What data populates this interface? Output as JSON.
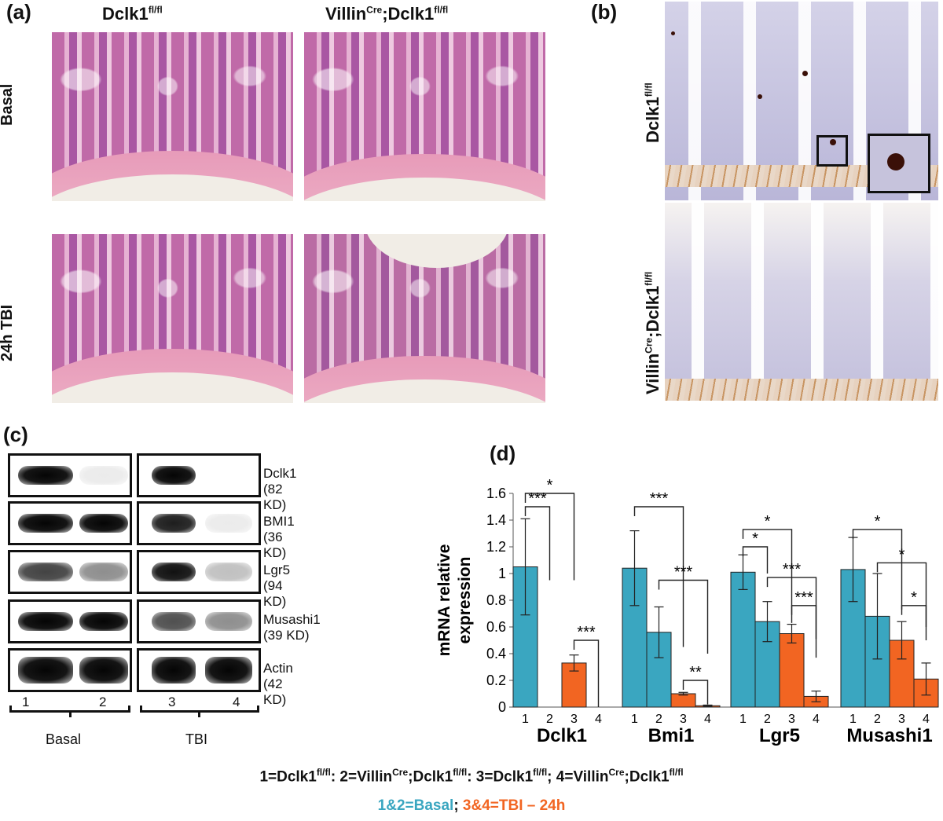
{
  "panels": {
    "a": "(a)",
    "b": "(b)",
    "c": "(c)",
    "d": "(d)"
  },
  "panel_a": {
    "col1_main": "Dclk1",
    "col1_sup": "fl/fl",
    "col2_main1": "Villin",
    "col2_sup1": "Cre",
    "col2_main2": ";Dclk1",
    "col2_sup2": "fl/fl",
    "row1": "Basal",
    "row2": "24h TBI"
  },
  "panel_b": {
    "row1_main": "Dclk1",
    "row1_sup": "fl/fl",
    "row2_main1": "Villin",
    "row2_sup1": "Cre",
    "row2_main2": ";Dclk1",
    "row2_sup2": "fl/fl"
  },
  "panel_c": {
    "proteins": [
      "Dclk1 (82 KD)",
      "BMI1 (36 KD)",
      "Lgr5 (94 KD)",
      "Musashi1 (39 KD)",
      "Actin (42 KD)"
    ],
    "lanes": [
      "1",
      "2",
      "3",
      "4"
    ],
    "groups": [
      "Basal",
      "TBI"
    ]
  },
  "chart_data": {
    "type": "bar",
    "ylabel": "mRNA relative expression",
    "ylim": [
      0,
      1.6
    ],
    "yticks": [
      "0",
      "0.2",
      "0.4",
      "0.6",
      "0.8",
      "1",
      "1.2",
      "1.4",
      "1.6"
    ],
    "groups": [
      {
        "name": "Dclk1",
        "values": [
          1.05,
          0.0,
          0.33,
          0.0
        ],
        "errors": [
          0.36,
          0.0,
          0.06,
          0.0
        ]
      },
      {
        "name": "Bmi1",
        "values": [
          1.04,
          0.56,
          0.1,
          0.01
        ],
        "errors": [
          0.28,
          0.19,
          0.01,
          0.005
        ]
      },
      {
        "name": "Lgr5",
        "values": [
          1.01,
          0.64,
          0.55,
          0.08
        ],
        "errors": [
          0.13,
          0.15,
          0.07,
          0.04
        ]
      },
      {
        "name": "Musashi1",
        "values": [
          1.03,
          0.68,
          0.5,
          0.21
        ],
        "errors": [
          0.24,
          0.32,
          0.14,
          0.12
        ]
      }
    ],
    "bar_labels": [
      "1",
      "2",
      "3",
      "4"
    ],
    "colors": {
      "basal": "#3aa6c0",
      "tbi": "#f26522"
    },
    "significance": [
      "*",
      "***",
      "***",
      "***",
      "***",
      "**",
      "*",
      "*",
      "***",
      "***",
      "*",
      "*",
      "*"
    ]
  },
  "legend": {
    "line1_parts": [
      "1=Dclk1",
      "fl/fl",
      ": 2=Villin",
      "Cre",
      ";Dclk1",
      "fl/fl",
      ": 3=Dclk1",
      "fl/fl",
      "; 4=Villin",
      "Cre",
      ";Dclk1",
      "fl/fl"
    ],
    "basal": "1&2=Basal",
    "sep": ";",
    "tbi": "3&4=TBI – 24h"
  }
}
